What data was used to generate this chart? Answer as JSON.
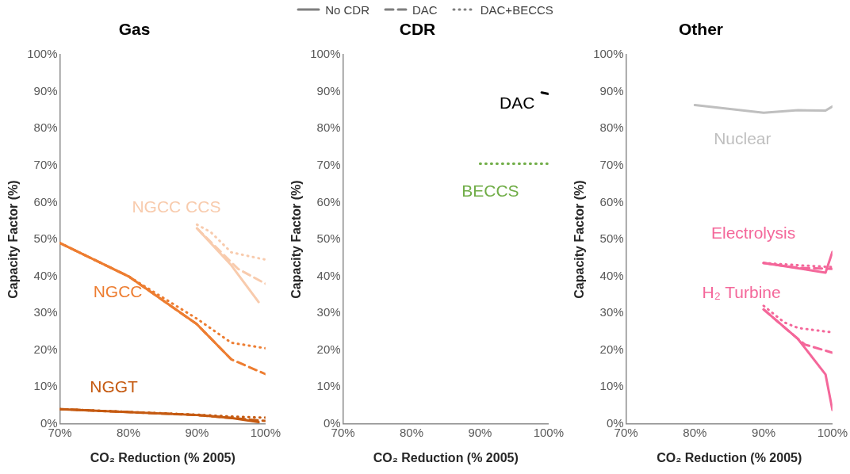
{
  "chart_data": [
    {
      "type": "line",
      "title": "Gas",
      "xlabel": "CO₂ Reduction (% 2005)",
      "ylabel": "Capacity Factor (%)",
      "xlim": [
        70,
        100
      ],
      "xticks": [
        {
          "value": 70,
          "label": "70%"
        },
        {
          "value": 80,
          "label": "80%"
        },
        {
          "value": 90,
          "label": "90%"
        },
        {
          "value": 100,
          "label": "100%"
        }
      ],
      "ylim": [
        0,
        100
      ],
      "yticks": [
        {
          "value": 0,
          "label": "0%"
        },
        {
          "value": 10,
          "label": "10%"
        },
        {
          "value": 20,
          "label": "20%"
        },
        {
          "value": 30,
          "label": "30%"
        },
        {
          "value": 40,
          "label": "40%"
        },
        {
          "value": 50,
          "label": "50%"
        },
        {
          "value": 60,
          "label": "60%"
        },
        {
          "value": 70,
          "label": "70%"
        },
        {
          "value": 80,
          "label": "80%"
        },
        {
          "value": 90,
          "label": "90%"
        },
        {
          "value": 100,
          "label": "100%"
        }
      ],
      "series": [
        {
          "name": "NGCC",
          "line_style": "solid",
          "color": "#ed7d31",
          "x": [
            70,
            80,
            90,
            95
          ],
          "values": [
            49,
            40,
            27,
            17.5
          ]
        },
        {
          "line_style": "dashed",
          "color": "#ed7d31",
          "x": [
            70,
            80,
            90,
            95,
            100
          ],
          "values": [
            49,
            40,
            27,
            17.5,
            13.5
          ]
        },
        {
          "line_style": "dotted",
          "color": "#ed7d31",
          "x": [
            70,
            80,
            90,
            95,
            100
          ],
          "values": [
            49,
            40,
            28.5,
            22,
            20.5
          ]
        },
        {
          "name": "NGCC CCS",
          "line_style": "solid",
          "color": "#f8cbad",
          "x": [
            90,
            95,
            99
          ],
          "values": [
            53,
            43,
            33
          ]
        },
        {
          "line_style": "dashed",
          "color": "#f8cbad",
          "x": [
            90,
            96,
            100
          ],
          "values": [
            53,
            42,
            38
          ]
        },
        {
          "line_style": "dotted",
          "color": "#f8cbad",
          "x": [
            90,
            92,
            95,
            100
          ],
          "values": [
            54,
            52,
            46.5,
            44.5
          ]
        },
        {
          "name": "NGGT",
          "line_style": "solid",
          "color": "#c55a11",
          "x": [
            70,
            90,
            95,
            99
          ],
          "values": [
            4,
            2.4,
            1.6,
            0.5
          ]
        },
        {
          "line_style": "dashed",
          "color": "#c55a11",
          "x": [
            70,
            90,
            95,
            100
          ],
          "values": [
            4,
            2.4,
            1.6,
            0.8
          ]
        },
        {
          "line_style": "dotted",
          "color": "#c55a11",
          "x": [
            70,
            90,
            95,
            100
          ],
          "values": [
            4,
            2.5,
            2,
            1.7
          ]
        }
      ],
      "annotations": [
        "No CDR",
        "DAC",
        "DAC+BECCS"
      ]
    },
    {
      "type": "line",
      "title": "CDR",
      "xlabel": "CO₂ Reduction (% 2005)",
      "ylabel": "Capacity Factor (%)",
      "xlim": [
        70,
        100
      ],
      "xticks": [
        {
          "value": 70,
          "label": "70%"
        },
        {
          "value": 80,
          "label": "80%"
        },
        {
          "value": 90,
          "label": "90%"
        },
        {
          "value": 100,
          "label": "100%"
        }
      ],
      "ylim": [
        0,
        100
      ],
      "yticks": [
        {
          "value": 0,
          "label": "0%"
        },
        {
          "value": 10,
          "label": "10%"
        },
        {
          "value": 20,
          "label": "20%"
        },
        {
          "value": 30,
          "label": "30%"
        },
        {
          "value": 40,
          "label": "40%"
        },
        {
          "value": 50,
          "label": "50%"
        },
        {
          "value": 60,
          "label": "60%"
        },
        {
          "value": 70,
          "label": "70%"
        },
        {
          "value": 80,
          "label": "80%"
        },
        {
          "value": 90,
          "label": "90%"
        },
        {
          "value": 100,
          "label": "100%"
        }
      ],
      "series": [
        {
          "name": "DAC",
          "line_style": "dashed",
          "color": "#000000",
          "x": [
            99,
            100
          ],
          "values": [
            89.8,
            89.4
          ]
        },
        {
          "name": "BECCS",
          "line_style": "dotted",
          "color": "#70ad47",
          "x": [
            90,
            100
          ],
          "values": [
            70.5,
            70.5
          ]
        }
      ]
    },
    {
      "type": "line",
      "title": "Other",
      "xlabel": "CO₂ Reduction (% 2005)",
      "ylabel": "Capacity Factor (%)",
      "xlim": [
        70,
        100
      ],
      "xticks": [
        {
          "value": 70,
          "label": "70%"
        },
        {
          "value": 80,
          "label": "80%"
        },
        {
          "value": 90,
          "label": "90%"
        },
        {
          "value": 100,
          "label": "100%"
        }
      ],
      "ylim": [
        0,
        100
      ],
      "yticks": [
        {
          "value": 0,
          "label": "0%"
        },
        {
          "value": 10,
          "label": "10%"
        },
        {
          "value": 20,
          "label": "20%"
        },
        {
          "value": 30,
          "label": "30%"
        },
        {
          "value": 40,
          "label": "40%"
        },
        {
          "value": 50,
          "label": "50%"
        },
        {
          "value": 60,
          "label": "60%"
        },
        {
          "value": 70,
          "label": "70%"
        },
        {
          "value": 80,
          "label": "80%"
        },
        {
          "value": 90,
          "label": "90%"
        },
        {
          "value": 100,
          "label": "100%"
        }
      ],
      "series": [
        {
          "name": "Nuclear",
          "line_style": "solid",
          "color": "#bfbfbf",
          "x": [
            80,
            90,
            95,
            99,
            100
          ],
          "values": [
            86.4,
            84.3,
            85,
            84.9,
            86
          ]
        },
        {
          "name": "Electrolysis",
          "line_style": "solid",
          "color": "#f4679a",
          "x": [
            90,
            99,
            100
          ],
          "values": [
            43.6,
            41,
            46.6
          ]
        },
        {
          "line_style": "dashed",
          "color": "#f4679a",
          "x": [
            90,
            95,
            100
          ],
          "values": [
            43.6,
            42.3,
            42
          ]
        },
        {
          "line_style": "dotted",
          "color": "#f4679a",
          "x": [
            90,
            95,
            100
          ],
          "values": [
            43.6,
            43,
            42.5
          ]
        },
        {
          "name": "H₂ Turbine",
          "line_style": "solid",
          "color": "#f4679a",
          "x": [
            90,
            95,
            99,
            100
          ],
          "values": [
            31,
            23,
            13.4,
            3.8
          ]
        },
        {
          "line_style": "dashed",
          "color": "#f4679a",
          "x": [
            90,
            95,
            96,
            100
          ],
          "values": [
            31,
            23,
            21.5,
            19.3
          ]
        },
        {
          "line_style": "dotted",
          "color": "#f4679a",
          "x": [
            90,
            93,
            95,
            100
          ],
          "values": [
            32,
            27.5,
            26,
            24.8
          ]
        }
      ]
    }
  ]
}
